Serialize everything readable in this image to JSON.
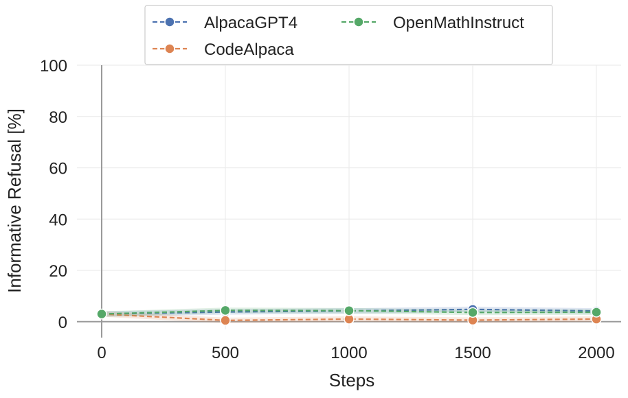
{
  "chart_data": {
    "type": "line",
    "xlabel": "Steps",
    "ylabel": "Informative Refusal [%]",
    "x": [
      0,
      500,
      1000,
      1500,
      2000
    ],
    "xlim": [
      -100,
      2100
    ],
    "ylim": [
      -3,
      100
    ],
    "xticks": [
      "0",
      "500",
      "1000",
      "1500",
      "2000"
    ],
    "yticks": [
      "0",
      "20",
      "40",
      "60",
      "80",
      "100"
    ],
    "grid": true,
    "legend_position": "top-center",
    "series": [
      {
        "name": "AlpacaGPT4",
        "color": "#4c72b0",
        "values": [
          3.0,
          3.8,
          4.2,
          4.8,
          4.2
        ]
      },
      {
        "name": "CodeAlpaca",
        "color": "#dd8452",
        "values": [
          3.0,
          0.5,
          1.0,
          0.6,
          1.0
        ]
      },
      {
        "name": "OpenMathInstruct",
        "color": "#55a868",
        "values": [
          3.0,
          4.4,
          4.3,
          3.6,
          3.7
        ]
      }
    ]
  }
}
